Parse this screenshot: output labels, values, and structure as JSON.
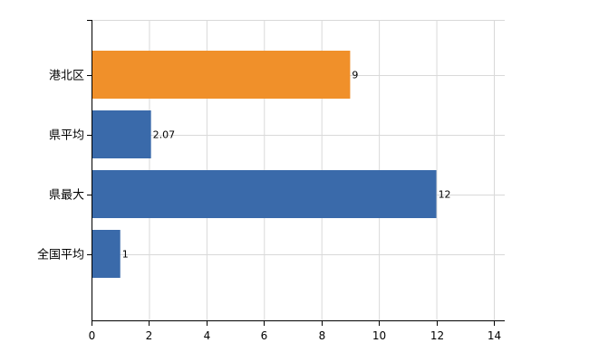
{
  "chart_data": {
    "type": "bar",
    "orientation": "horizontal",
    "categories": [
      "港北区",
      "県平均",
      "県最大",
      "全国平均"
    ],
    "values": [
      9,
      2.07,
      12,
      1
    ],
    "value_labels": [
      "9",
      "2.07",
      "12",
      "1"
    ],
    "bar_colors": [
      "#f0902a",
      "#3a6aaa",
      "#3a6aaa",
      "#3a6aaa"
    ],
    "xlim": [
      0,
      14
    ],
    "x_ticks": [
      0,
      2,
      4,
      6,
      8,
      10,
      12,
      14
    ],
    "x_tick_labels": [
      "0",
      "2",
      "4",
      "6",
      "8",
      "10",
      "12",
      "14"
    ],
    "grid": true,
    "title": "",
    "xlabel": "",
    "ylabel": ""
  },
  "colors": {
    "grid": "#d9d9d9",
    "axis": "#000000"
  }
}
